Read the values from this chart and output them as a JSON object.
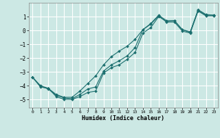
{
  "title": "",
  "xlabel": "Humidex (Indice chaleur)",
  "bg_color": "#cce8e4",
  "grid_color": "#ffffff",
  "line_color": "#1a6e6e",
  "xlim": [
    -0.5,
    23.5
  ],
  "ylim": [
    -5.6,
    2.0
  ],
  "xticks": [
    0,
    1,
    2,
    3,
    4,
    5,
    6,
    7,
    8,
    9,
    10,
    11,
    12,
    13,
    14,
    15,
    16,
    17,
    18,
    19,
    20,
    21,
    22,
    23
  ],
  "yticks": [
    -5,
    -4,
    -3,
    -2,
    -1,
    0,
    1
  ],
  "line1_x": [
    0,
    1,
    2,
    3,
    4,
    5,
    6,
    7,
    8,
    9,
    10,
    11,
    12,
    13,
    14,
    15,
    16,
    17,
    18,
    19,
    20,
    21,
    22,
    23
  ],
  "line1_y": [
    -3.4,
    -4.1,
    -4.2,
    -4.8,
    -5.0,
    -5.0,
    -4.8,
    -4.5,
    -4.4,
    -3.1,
    -2.7,
    -2.5,
    -2.1,
    -1.6,
    -0.2,
    0.2,
    1.0,
    0.65,
    0.7,
    0.05,
    -0.15,
    1.5,
    1.15,
    1.1
  ],
  "line2_x": [
    0,
    1,
    2,
    3,
    4,
    5,
    6,
    7,
    8,
    9,
    10,
    11,
    12,
    13,
    14,
    15,
    16,
    17,
    18,
    19,
    20,
    21,
    22,
    23
  ],
  "line2_y": [
    -3.4,
    -4.05,
    -4.25,
    -4.7,
    -4.9,
    -4.95,
    -4.65,
    -4.25,
    -4.1,
    -2.95,
    -2.5,
    -2.2,
    -1.85,
    -1.25,
    0.05,
    0.45,
    1.05,
    0.6,
    0.6,
    -0.05,
    -0.2,
    1.4,
    1.05,
    1.05
  ],
  "line3_x": [
    0,
    1,
    2,
    3,
    4,
    5,
    6,
    7,
    8,
    9,
    10,
    11,
    12,
    13,
    14,
    15,
    16,
    17,
    18,
    19,
    20,
    21,
    22,
    23
  ],
  "line3_y": [
    -3.4,
    -4.0,
    -4.2,
    -4.65,
    -4.85,
    -4.85,
    -4.4,
    -3.85,
    -3.3,
    -2.5,
    -1.9,
    -1.5,
    -1.15,
    -0.65,
    0.05,
    0.5,
    1.1,
    0.7,
    0.7,
    0.05,
    -0.1,
    1.45,
    1.1,
    1.1
  ]
}
